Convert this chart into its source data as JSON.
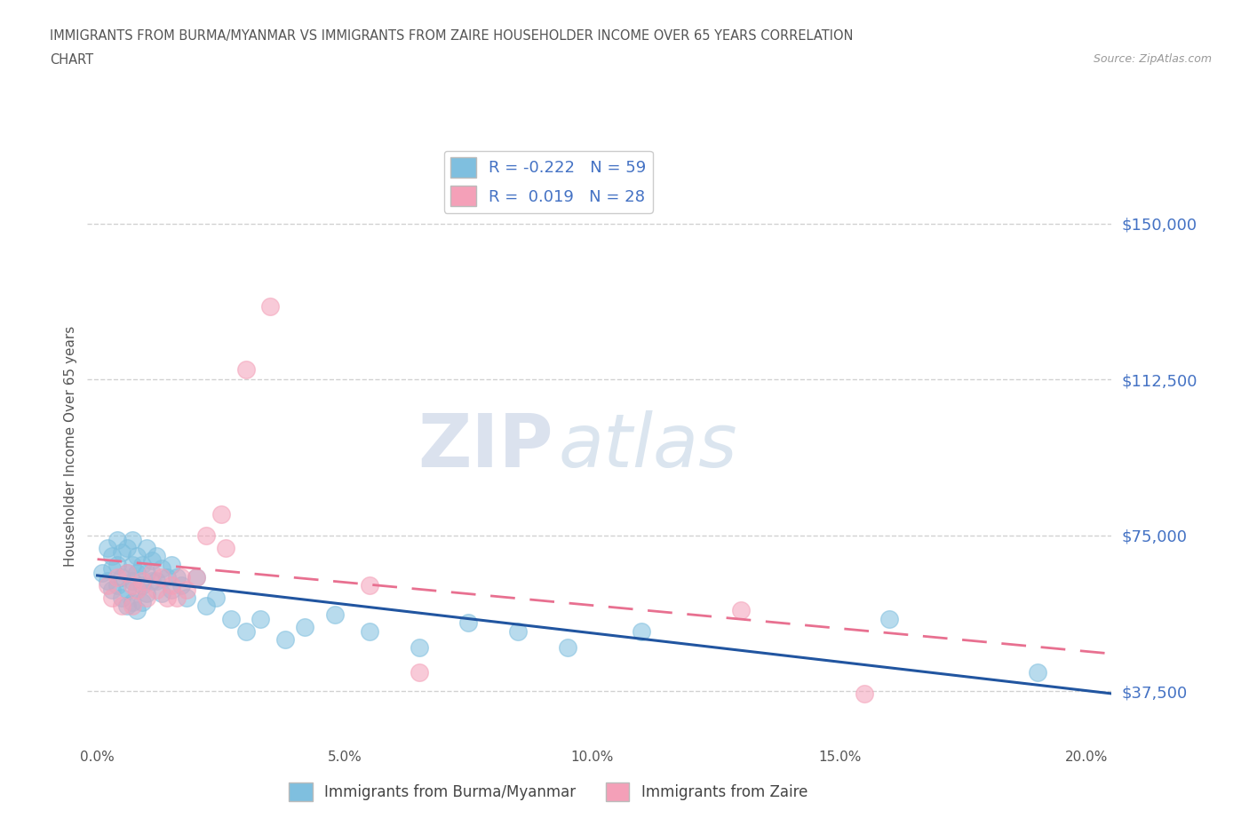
{
  "title_line1": "IMMIGRANTS FROM BURMA/MYANMAR VS IMMIGRANTS FROM ZAIRE HOUSEHOLDER INCOME OVER 65 YEARS CORRELATION",
  "title_line2": "CHART",
  "source": "Source: ZipAtlas.com",
  "ylabel": "Householder Income Over 65 years",
  "xlim": [
    -0.002,
    0.205
  ],
  "ylim": [
    25000,
    168000
  ],
  "yticks": [
    37500,
    75000,
    112500,
    150000
  ],
  "ytick_labels": [
    "$37,500",
    "$75,000",
    "$112,500",
    "$150,000"
  ],
  "xticks": [
    0.0,
    0.05,
    0.1,
    0.15,
    0.2
  ],
  "xtick_labels": [
    "0.0%",
    "5.0%",
    "10.0%",
    "15.0%",
    "20.0%"
  ],
  "color_burma": "#7fbfdf",
  "color_zaire": "#f4a0b8",
  "color_line_burma": "#2155a0",
  "color_line_zaire": "#e87090",
  "R_burma": -0.222,
  "N_burma": 59,
  "R_zaire": 0.019,
  "N_zaire": 28,
  "legend_label_burma": "Immigrants from Burma/Myanmar",
  "legend_label_zaire": "Immigrants from Zaire",
  "watermark_ZIP": "ZIP",
  "watermark_atlas": "atlas",
  "background_color": "#ffffff",
  "grid_color": "#cccccc",
  "title_color": "#555555",
  "ytick_color": "#4472c4",
  "scatter_burma_x": [
    0.001,
    0.002,
    0.002,
    0.003,
    0.003,
    0.003,
    0.004,
    0.004,
    0.004,
    0.005,
    0.005,
    0.005,
    0.006,
    0.006,
    0.006,
    0.006,
    0.007,
    0.007,
    0.007,
    0.007,
    0.008,
    0.008,
    0.008,
    0.008,
    0.009,
    0.009,
    0.009,
    0.01,
    0.01,
    0.01,
    0.011,
    0.011,
    0.012,
    0.012,
    0.013,
    0.013,
    0.014,
    0.015,
    0.015,
    0.016,
    0.017,
    0.018,
    0.02,
    0.022,
    0.024,
    0.027,
    0.03,
    0.033,
    0.038,
    0.042,
    0.048,
    0.055,
    0.065,
    0.075,
    0.085,
    0.095,
    0.11,
    0.16,
    0.19
  ],
  "scatter_burma_y": [
    66000,
    72000,
    64000,
    70000,
    67000,
    62000,
    74000,
    68000,
    63000,
    71000,
    65000,
    60000,
    72000,
    66000,
    62000,
    58000,
    74000,
    68000,
    64000,
    59000,
    70000,
    66000,
    62000,
    57000,
    68000,
    63000,
    59000,
    72000,
    66000,
    61000,
    69000,
    64000,
    70000,
    64000,
    67000,
    61000,
    65000,
    68000,
    62000,
    65000,
    63000,
    60000,
    65000,
    58000,
    60000,
    55000,
    52000,
    55000,
    50000,
    53000,
    56000,
    52000,
    48000,
    54000,
    52000,
    48000,
    52000,
    55000,
    42000
  ],
  "scatter_zaire_x": [
    0.002,
    0.003,
    0.004,
    0.005,
    0.006,
    0.007,
    0.007,
    0.008,
    0.009,
    0.01,
    0.011,
    0.012,
    0.013,
    0.014,
    0.015,
    0.016,
    0.017,
    0.018,
    0.02,
    0.022,
    0.025,
    0.026,
    0.03,
    0.035,
    0.055,
    0.065,
    0.13,
    0.155
  ],
  "scatter_zaire_y": [
    63000,
    60000,
    65000,
    58000,
    66000,
    63000,
    58000,
    62000,
    64000,
    60000,
    66000,
    62000,
    65000,
    60000,
    63000,
    60000,
    65000,
    62000,
    65000,
    75000,
    80000,
    72000,
    115000,
    130000,
    63000,
    42000,
    57000,
    37000
  ]
}
